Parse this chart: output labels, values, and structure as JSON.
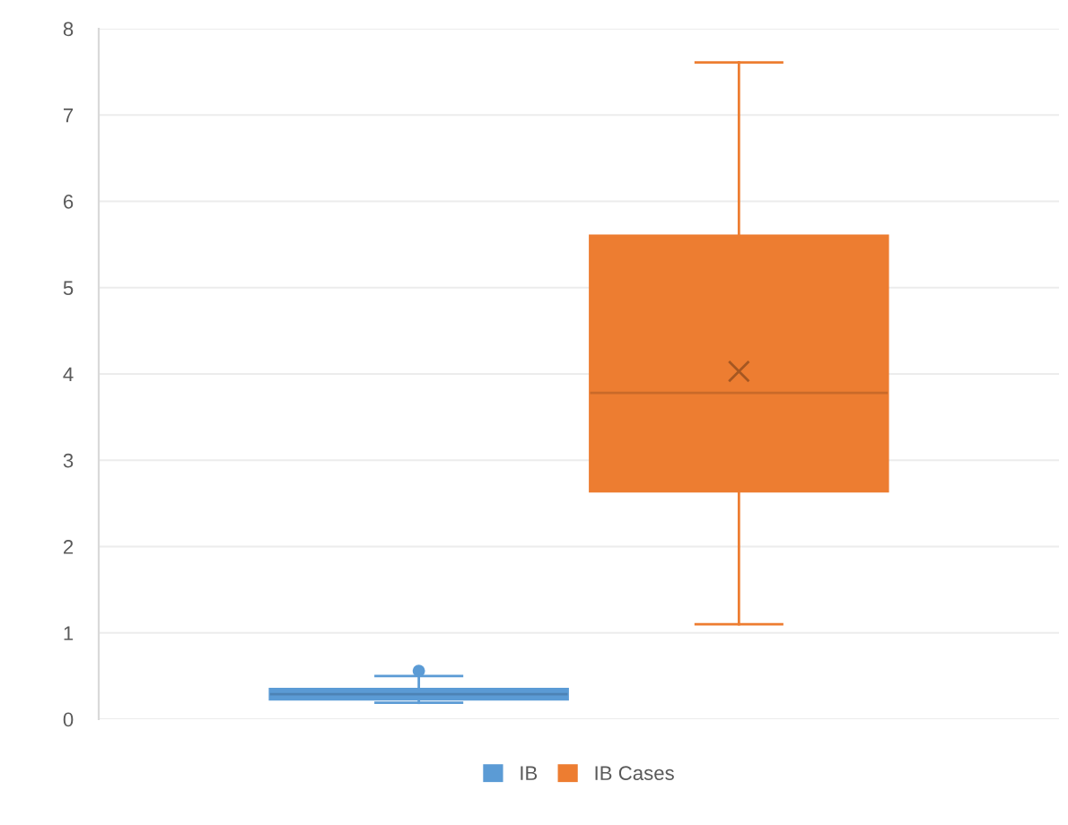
{
  "chart_data": {
    "type": "box",
    "categories": [
      null
    ],
    "series": [
      {
        "name": "IB",
        "color": "#5b9bd5",
        "boxes": [
          {
            "low": 0.19,
            "q1": 0.23,
            "median": 0.29,
            "q3": 0.35,
            "high": 0.5,
            "outliers": [
              0.56
            ]
          }
        ]
      },
      {
        "name": "IB Cases",
        "color": "#ed7d31",
        "boxes": [
          {
            "low": 1.1,
            "q1": 2.64,
            "median": 3.78,
            "q3": 5.6,
            "high": 7.61,
            "mean": 4.03
          }
        ]
      }
    ],
    "ylim": [
      0,
      8
    ],
    "yticks": [
      0,
      1,
      2,
      3,
      4,
      5,
      6,
      7,
      8
    ],
    "grid": "y",
    "legend": "bottom"
  }
}
